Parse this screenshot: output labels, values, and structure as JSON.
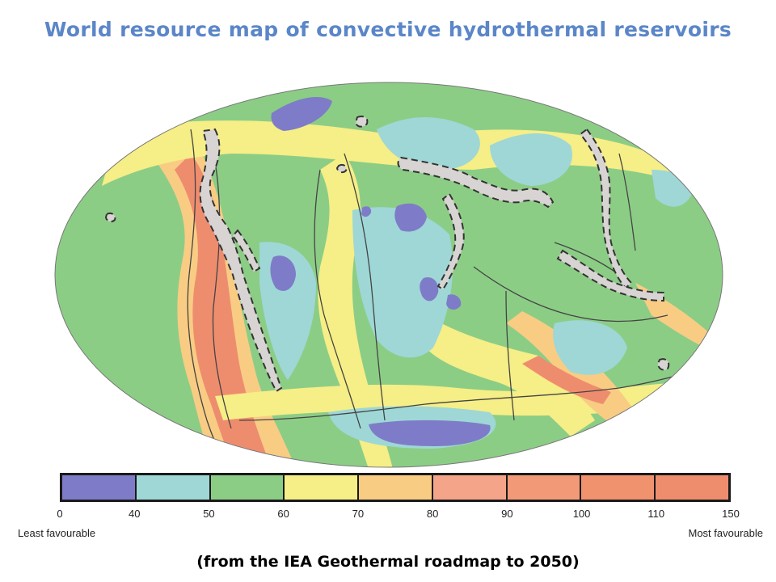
{
  "title": "World resource map of convective hydrothermal reservoirs",
  "caption": "(from the IEA Geothermal roadmap to 2050)",
  "legend": {
    "ticks": [
      "0",
      "40",
      "50",
      "60",
      "70",
      "80",
      "90",
      "100",
      "110",
      "150"
    ],
    "colors": [
      "#7e7cc8",
      "#9ed7d6",
      "#8ccd86",
      "#f6ee86",
      "#f9cc84",
      "#f4a489",
      "#f29a78",
      "#f1926f",
      "#ee8d6e"
    ],
    "left_label": "Least favourable",
    "right_label": "Most favourable"
  },
  "map": {
    "projection": "Mollweide",
    "reservoir_zone_style": "grey fill with dashed outline",
    "colors": {
      "ocean_background": "#8ccd86",
      "low": "#9ed7d6",
      "lowest": "#7e7cc8",
      "mid": "#f6ee86",
      "mid_high": "#f9cc84",
      "high": "#ee8d6e",
      "reservoir": "#d9d4d4",
      "plate_lines": "#444444"
    }
  }
}
